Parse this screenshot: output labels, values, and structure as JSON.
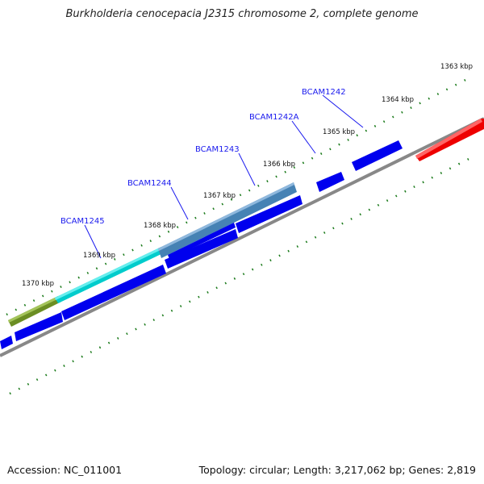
{
  "title": "Burkholderia cenocepacia J2315 chromosome 2, complete genome",
  "footer": {
    "accession": "Accession: NC_011001",
    "summary": "Topology: circular; Length: 3,217,062 bp; Genes: 2,819"
  },
  "scale": {
    "unit": "kbp",
    "labels": [
      {
        "id": "1363",
        "text": "1363 kbp"
      },
      {
        "id": "1364",
        "text": "1364 kbp"
      },
      {
        "id": "1365",
        "text": "1365 kbp"
      },
      {
        "id": "1366",
        "text": "1366 kbp"
      },
      {
        "id": "1367",
        "text": "1367 kbp"
      },
      {
        "id": "1368",
        "text": "1368 kbp"
      },
      {
        "id": "1369",
        "text": "1369 kbp"
      },
      {
        "id": "1370",
        "text": "1370 kbp"
      }
    ]
  },
  "gene_labels": [
    {
      "id": "bcam1242",
      "text": "BCAM1242"
    },
    {
      "id": "bcam1242a",
      "text": "BCAM1242A"
    },
    {
      "id": "bcam1243",
      "text": "BCAM1243"
    },
    {
      "id": "bcam1244",
      "text": "BCAM1244"
    },
    {
      "id": "bcam1245",
      "text": "BCAM1245"
    }
  ],
  "colors": {
    "backbone": "#888888",
    "gene_blue": "#0000ee",
    "rna_red": "#ee0000",
    "ruler_green": "#1a7a1a",
    "label_blue": "#1a1aee",
    "cds_olive": "#6b8e23",
    "cds_cyan": "#00cccc",
    "cds_steel": "#4682b4"
  }
}
